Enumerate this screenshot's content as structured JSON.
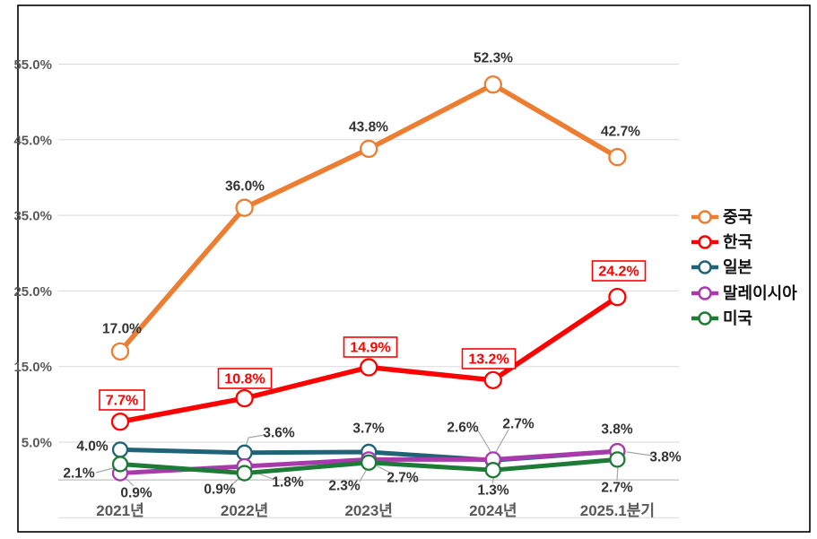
{
  "figure": {
    "background": "#ffffff",
    "border_color": "#000000"
  },
  "chart_data": {
    "type": "line",
    "title": "",
    "categories": [
      "2021년",
      "2022년",
      "2023년",
      "2024년",
      "2025.1분기"
    ],
    "series": [
      {
        "id": "china",
        "name": "중국",
        "color": "#ED7D31",
        "values": [
          17.0,
          36.0,
          43.8,
          52.3,
          42.7
        ],
        "labels": [
          "17.0%",
          "36.0%",
          "43.8%",
          "52.3%",
          "42.7%"
        ],
        "label_style": "plain"
      },
      {
        "id": "korea",
        "name": "한국",
        "color": "#FF0000",
        "values": [
          7.7,
          10.8,
          14.9,
          13.2,
          24.2
        ],
        "labels": [
          "7.7%",
          "10.8%",
          "14.9%",
          "13.2%",
          "24.2%"
        ],
        "label_style": "boxed-red"
      },
      {
        "id": "japan",
        "name": "일본",
        "color": "#1F6379",
        "values": [
          4.0,
          3.6,
          3.7,
          2.6,
          3.8
        ],
        "labels": [
          "4.0%",
          "3.6%",
          "3.7%",
          "2.6%",
          "3.8%"
        ],
        "label_style": "plain"
      },
      {
        "id": "malaysia",
        "name": "말레이시아",
        "color": "#A93AAD",
        "values": [
          0.9,
          1.8,
          2.7,
          2.7,
          3.8
        ],
        "labels": [
          "0.9%",
          "1.8%",
          "2.7%",
          "2.7%",
          "3.8%"
        ],
        "label_style": "plain"
      },
      {
        "id": "usa",
        "name": "미국",
        "color": "#1E7B36",
        "values": [
          2.1,
          0.9,
          2.3,
          1.3,
          2.7
        ],
        "labels": [
          "2.1%",
          "0.9%",
          "2.3%",
          "1.3%",
          "2.7%"
        ],
        "label_style": "plain"
      }
    ],
    "y_axis": {
      "tick_values": [
        55,
        45,
        35,
        25,
        15,
        5
      ],
      "tick_labels": [
        "55.0%",
        "45.0%",
        "35.0%",
        "25.0%",
        "15.0%",
        "5.0%"
      ],
      "min": -5,
      "max": 57,
      "unit": "percent"
    },
    "grid": true,
    "legend_position": "right",
    "marker": "open-circle"
  },
  "colors": {
    "gridline": "#D9D9D9",
    "axis_line": "#BFBFBF",
    "leader_line": "#A6A6A6",
    "data_label": "#333333",
    "axis_label": "#595959",
    "legend_text": "#111111"
  }
}
